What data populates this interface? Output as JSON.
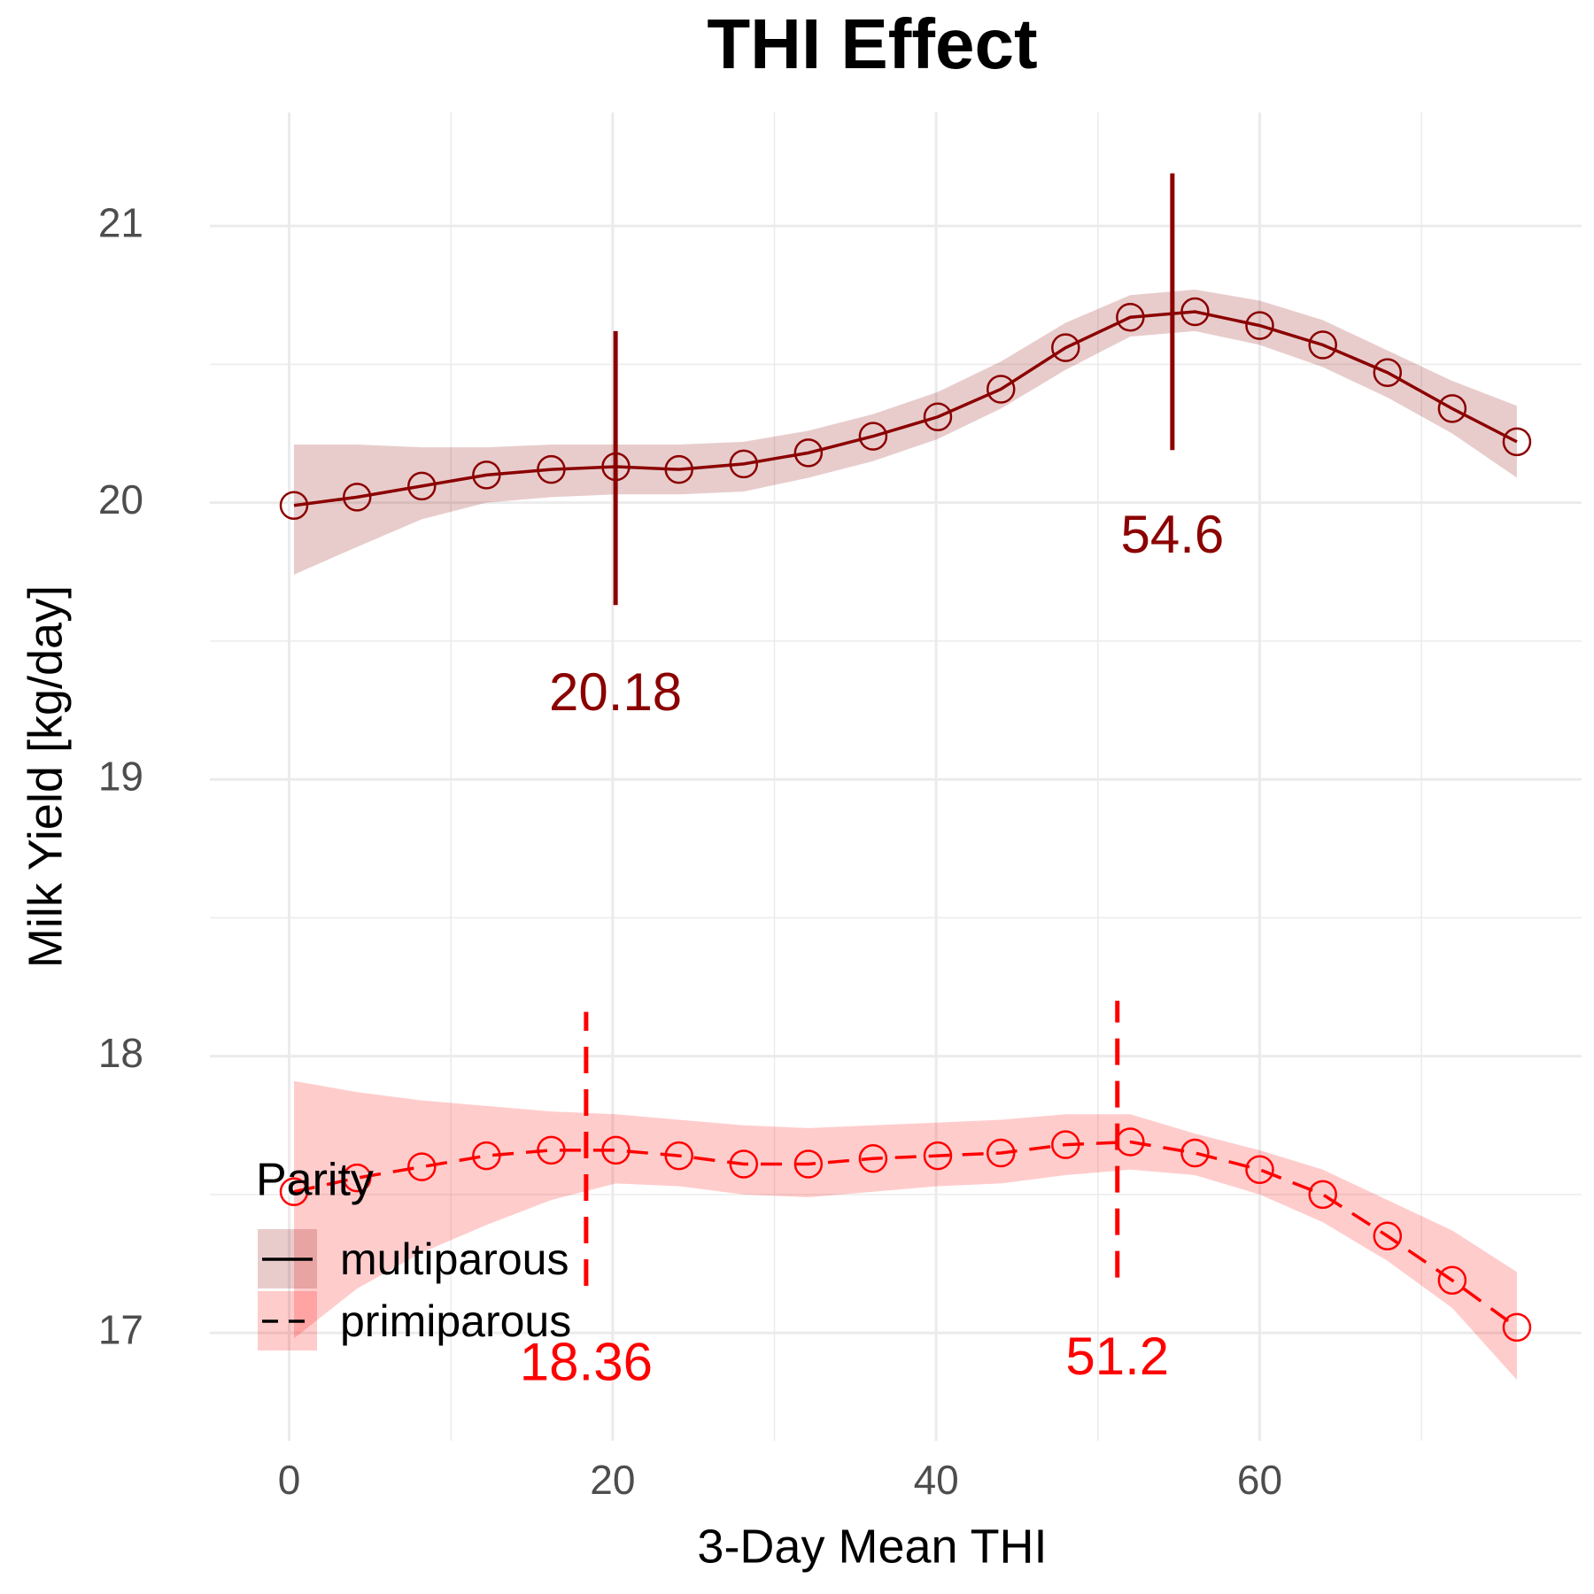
{
  "chart_data": {
    "type": "line",
    "title": "THI Effect",
    "x_label": "3-Day Mean THI",
    "y_label": "Milk Yield [kg/day]",
    "xlim": [
      -4.9,
      79.9
    ],
    "ylim": [
      16.61,
      21.41
    ],
    "xticks": [
      0,
      20,
      40,
      60
    ],
    "yticks": [
      17,
      18,
      19,
      20,
      21
    ],
    "grid": true,
    "legend_title": "Parity",
    "legend_position": "bottom-left",
    "series": [
      {
        "name": "multiparous",
        "color": "#8b0000",
        "linetype": "solid",
        "x": [
          0.3,
          4.2,
          8.2,
          12.2,
          16.2,
          20.2,
          24.1,
          28.1,
          32.1,
          36.1,
          40.1,
          44.0,
          48.0,
          52.0,
          56.0,
          60.0,
          63.9,
          67.9,
          71.9,
          75.9
        ],
        "values": [
          19.99,
          20.02,
          20.06,
          20.1,
          20.12,
          20.13,
          20.12,
          20.14,
          20.18,
          20.24,
          20.31,
          20.41,
          20.56,
          20.67,
          20.69,
          20.64,
          20.57,
          20.47,
          20.34,
          20.22
        ],
        "upper": [
          20.21,
          20.21,
          20.2,
          20.2,
          20.21,
          20.21,
          20.21,
          20.22,
          20.26,
          20.32,
          20.4,
          20.51,
          20.65,
          20.75,
          20.77,
          20.73,
          20.66,
          20.55,
          20.44,
          20.35
        ],
        "lower": [
          19.74,
          19.84,
          19.94,
          20.0,
          20.02,
          20.03,
          20.03,
          20.04,
          20.09,
          20.15,
          20.23,
          20.34,
          20.48,
          20.6,
          20.62,
          20.57,
          20.49,
          20.38,
          20.25,
          20.09
        ]
      },
      {
        "name": "primiparous",
        "color": "#ff0000",
        "linetype": "dashed",
        "x": [
          0.3,
          4.2,
          8.2,
          12.2,
          16.2,
          20.2,
          24.1,
          28.1,
          32.1,
          36.1,
          40.1,
          44.0,
          48.0,
          52.0,
          56.0,
          60.0,
          63.9,
          67.9,
          71.9,
          75.9
        ],
        "values": [
          17.51,
          17.56,
          17.6,
          17.64,
          17.66,
          17.66,
          17.64,
          17.61,
          17.61,
          17.63,
          17.64,
          17.65,
          17.68,
          17.69,
          17.65,
          17.59,
          17.5,
          17.35,
          17.19,
          17.02
        ],
        "upper": [
          17.91,
          17.87,
          17.84,
          17.82,
          17.8,
          17.79,
          17.77,
          17.75,
          17.74,
          17.75,
          17.76,
          17.77,
          17.79,
          17.79,
          17.72,
          17.66,
          17.59,
          17.48,
          17.37,
          17.22
        ],
        "lower": [
          16.98,
          17.16,
          17.29,
          17.39,
          17.48,
          17.54,
          17.53,
          17.5,
          17.49,
          17.51,
          17.53,
          17.54,
          17.57,
          17.59,
          17.57,
          17.5,
          17.4,
          17.26,
          17.09,
          16.83
        ]
      }
    ],
    "annotations": [
      {
        "series": 0,
        "x": 20.18,
        "ymin": 19.63,
        "ymax": 20.62,
        "label_y": 19.3
      },
      {
        "series": 0,
        "x": 54.6,
        "ymin": 20.19,
        "ymax": 21.19,
        "label_y": 19.87
      },
      {
        "series": 1,
        "x": 18.36,
        "ymin": 17.17,
        "ymax": 18.16,
        "label_y": 16.88
      },
      {
        "series": 1,
        "x": 51.2,
        "ymin": 17.2,
        "ymax": 18.2,
        "label_y": 16.9
      }
    ]
  }
}
